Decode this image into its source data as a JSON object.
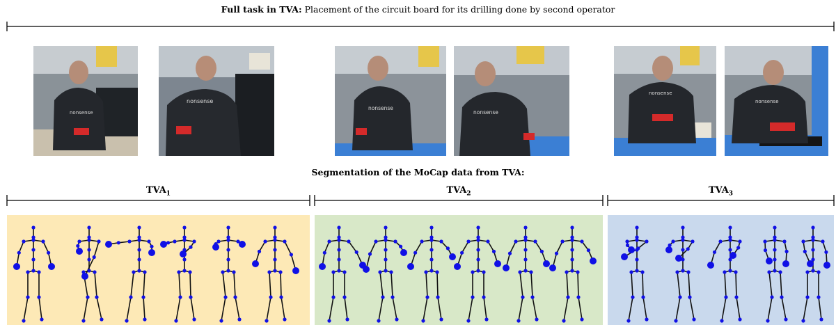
{
  "header": {
    "title_bold": "Full task in TVA:",
    "title_rest": " Placement of the circuit board for its drilling done by second operator"
  },
  "photos": [
    {
      "shirt_text": "nonsense"
    },
    {
      "shirt_text": "nonsense"
    },
    {
      "shirt_text": "nonsense"
    },
    {
      "shirt_text": "nonsense"
    },
    {
      "shirt_text": "nonsense"
    },
    {
      "shirt_text": "nonsense"
    }
  ],
  "segmentation": {
    "title": "Segmentation of the MoCap data from TVA:",
    "segments": [
      {
        "label": "TVA",
        "sub": "1",
        "color": "#fde9b6"
      },
      {
        "label": "TVA",
        "sub": "2",
        "color": "#d8e8c8"
      },
      {
        "label": "TVA",
        "sub": "3",
        "color": "#c9d9ed"
      }
    ]
  },
  "colors": {
    "joint": "#1010e6",
    "bone": "#111111"
  }
}
